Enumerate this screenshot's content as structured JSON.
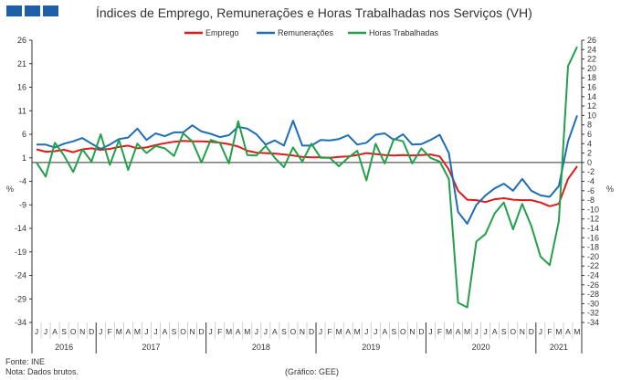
{
  "title": "Índices de Emprego, Remunerações e Horas Trabalhadas nos Serviços (VH)",
  "footer": {
    "source": "Fonte: INE",
    "note": "Nota: Dados brutos.",
    "credit": "(Gráfico: GEE)"
  },
  "chart_data": {
    "type": "line",
    "title": "Índices de Emprego, Remunerações e Horas Trabalhadas nos Serviços (VH)",
    "ylabel": "%",
    "y2label": "%",
    "ylim": [
      -34,
      26
    ],
    "y2lim": [
      -34,
      26
    ],
    "yticks": [
      -34,
      -29,
      -24,
      -19,
      -14,
      -9,
      -4,
      1,
      6,
      11,
      16,
      21,
      26
    ],
    "y2ticks": [
      -34,
      -32,
      -30,
      -28,
      -26,
      -24,
      -22,
      -20,
      -18,
      -16,
      -14,
      -12,
      -10,
      -8,
      -6,
      -4,
      -2,
      0,
      2,
      4,
      6,
      8,
      10,
      12,
      14,
      16,
      18,
      20,
      22,
      24,
      26
    ],
    "legend_position": "top",
    "grid": false,
    "months": [
      "J",
      "J",
      "A",
      "S",
      "O",
      "N",
      "D",
      "J",
      "F",
      "M",
      "A",
      "M",
      "J",
      "J",
      "A",
      "S",
      "O",
      "N",
      "D",
      "J",
      "F",
      "M",
      "A",
      "M",
      "J",
      "J",
      "A",
      "S",
      "O",
      "N",
      "D",
      "J",
      "F",
      "M",
      "A",
      "M",
      "J",
      "J",
      "A",
      "S",
      "O",
      "N",
      "D",
      "J",
      "F",
      "M",
      "A",
      "M",
      "J",
      "J",
      "A",
      "S",
      "O",
      "N",
      "D",
      "J",
      "F",
      "M",
      "A",
      "M"
    ],
    "years": [
      {
        "label": "2016",
        "start": 0,
        "end": 6
      },
      {
        "label": "2017",
        "start": 7,
        "end": 18
      },
      {
        "label": "2018",
        "start": 19,
        "end": 30
      },
      {
        "label": "2019",
        "start": 31,
        "end": 42
      },
      {
        "label": "2020",
        "start": 43,
        "end": 54
      },
      {
        "label": "2021",
        "start": 55,
        "end": 59
      }
    ],
    "series": [
      {
        "name": "Emprego",
        "color": "#e01a1a",
        "axis": "left",
        "values": [
          2.8,
          2.3,
          2.4,
          2.7,
          2.2,
          2.8,
          3.0,
          2.7,
          2.9,
          3.3,
          3.6,
          3.0,
          3.2,
          3.7,
          4.1,
          4.4,
          4.6,
          4.5,
          4.5,
          4.4,
          4.2,
          3.9,
          3.4,
          2.5,
          2.1,
          2.0,
          1.9,
          1.7,
          1.5,
          1.2,
          1.1,
          1.1,
          1.0,
          1.2,
          1.3,
          1.6,
          2.0,
          1.8,
          1.6,
          1.5,
          1.6,
          1.5,
          1.6,
          1.7,
          1.3,
          -1.5,
          -6.0,
          -7.9,
          -8.0,
          -8.4,
          -7.8,
          -7.6,
          -7.9,
          -8.0,
          -8.0,
          -8.5,
          -9.3,
          -8.8,
          -3.5,
          -0.8
        ]
      },
      {
        "name": "Remunerações",
        "color": "#1f6eb5",
        "axis": "left",
        "values": [
          3.8,
          3.8,
          3.2,
          4.0,
          4.5,
          5.2,
          4.0,
          2.9,
          3.8,
          5.0,
          5.3,
          7.2,
          4.8,
          6.2,
          5.6,
          6.4,
          6.4,
          7.9,
          6.6,
          6.1,
          5.4,
          5.8,
          7.6,
          7.2,
          6.0,
          3.8,
          4.7,
          3.6,
          8.9,
          3.6,
          3.6,
          4.8,
          4.7,
          5.0,
          5.8,
          3.8,
          4.2,
          5.9,
          6.2,
          4.8,
          6.0,
          3.8,
          3.9,
          4.8,
          5.9,
          2.0,
          -10.5,
          -13.0,
          -9.0,
          -7.0,
          -5.5,
          -4.5,
          -6.0,
          -3.5,
          -6.0,
          -7.0,
          -7.3,
          -5.0,
          4.5,
          10.0
        ]
      },
      {
        "name": "Horas Trabalhadas",
        "color": "#22a04a",
        "axis": "right",
        "values": [
          0.0,
          -3.0,
          4.2,
          1.5,
          -2.0,
          2.8,
          0.2,
          6.0,
          -0.5,
          4.8,
          -1.6,
          4.0,
          2.0,
          3.5,
          3.0,
          1.4,
          6.2,
          4.5,
          0.0,
          4.8,
          4.2,
          -0.2,
          8.8,
          1.6,
          1.5,
          3.5,
          1.0,
          -1.0,
          3.2,
          0.2,
          4.0,
          1.0,
          1.0,
          -0.8,
          1.0,
          2.5,
          -3.8,
          4.0,
          -0.2,
          5.0,
          4.5,
          -0.2,
          3.0,
          1.0,
          0.2,
          -3.5,
          -29.8,
          -30.8,
          -16.8,
          -15.2,
          -10.8,
          -8.5,
          -14.2,
          -8.8,
          -13.5,
          -20.0,
          -21.8,
          -12.5,
          20.5,
          24.6
        ]
      }
    ]
  }
}
